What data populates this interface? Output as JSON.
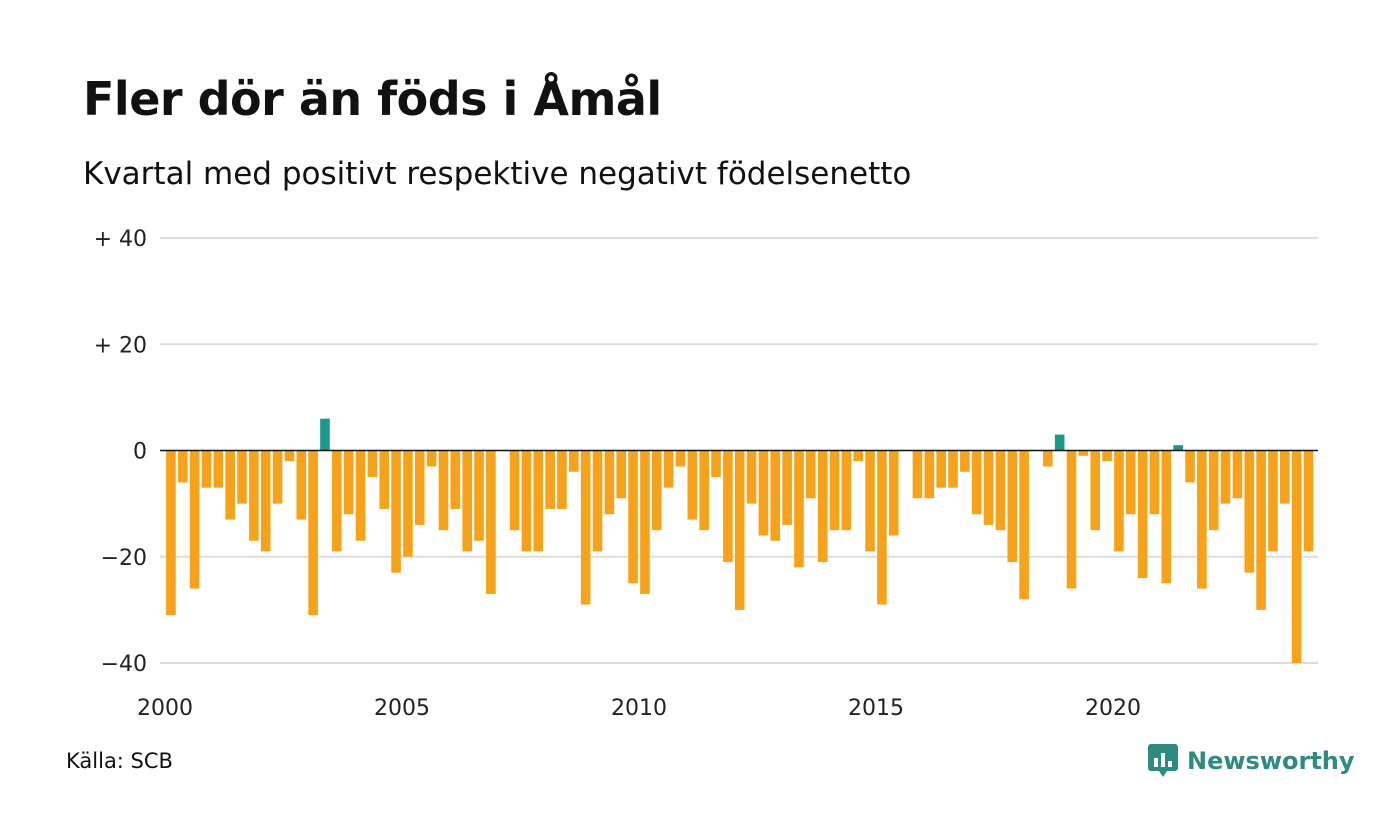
{
  "title": "Fler dör än föds i Åmål",
  "subtitle": "Kvartal med positivt respektive negativt födelsenetto",
  "source": "Källa: SCB",
  "brand": {
    "name": "Newsworthy",
    "icon": "newsworthy-logo-icon"
  },
  "colors": {
    "positive": "#1b9988",
    "negative": "#f7a21b",
    "grid": "#dddddd",
    "zero": "#111111"
  },
  "chart_data": {
    "type": "bar",
    "title": "Fler dör än föds i Åmål",
    "subtitle": "Kvartal med positivt respektive negativt födelsenetto",
    "xlabel": "",
    "ylabel": "",
    "ylim": [
      -40,
      40
    ],
    "yticks": [
      {
        "value": 40,
        "label": "+ 40"
      },
      {
        "value": 20,
        "label": "+ 20"
      },
      {
        "value": 0,
        "label": "0"
      },
      {
        "value": -20,
        "label": "−20"
      },
      {
        "value": -40,
        "label": "−40"
      }
    ],
    "xticks": [
      "2000",
      "2005",
      "2010",
      "2015",
      "2020"
    ],
    "grid": true,
    "start_year": 2000,
    "quarters_per_year": 4,
    "values": [
      -31,
      -6,
      -26,
      -7,
      -7,
      -13,
      -10,
      -17,
      -19,
      -10,
      -2,
      -13,
      -31,
      6,
      -19,
      -12,
      -17,
      -5,
      -11,
      -23,
      -20,
      -14,
      -3,
      -15,
      -11,
      -19,
      -17,
      -27,
      0,
      -15,
      -19,
      -19,
      -11,
      -11,
      -4,
      -29,
      -19,
      -12,
      -9,
      -25,
      -27,
      -15,
      -7,
      -3,
      -13,
      -15,
      -5,
      -21,
      -30,
      -10,
      -16,
      -17,
      -14,
      -22,
      -9,
      -21,
      -15,
      -15,
      -2,
      -19,
      -29,
      -16,
      0,
      -9,
      -9,
      -7,
      -7,
      -4,
      -12,
      -14,
      -15,
      -21,
      -28,
      0,
      -3,
      3,
      -26,
      -1,
      -15,
      -2,
      -19,
      -12,
      -24,
      -12,
      -25,
      1,
      -6,
      -26,
      -15,
      -10,
      -9,
      -23,
      -30,
      -19,
      -10,
      -40,
      -19
    ]
  }
}
